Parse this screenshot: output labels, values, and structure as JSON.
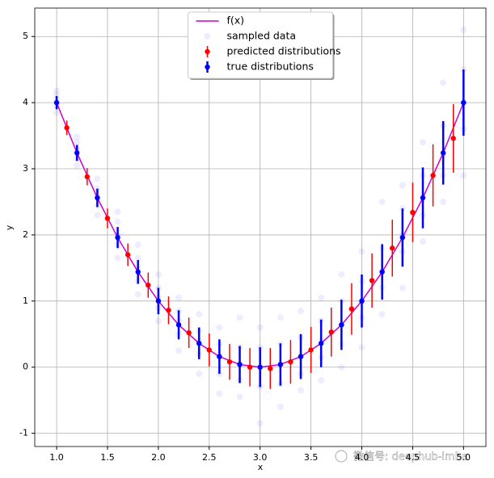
{
  "chart_data": {
    "type": "errorbar",
    "xlabel": "x",
    "ylabel": "y",
    "xlim": [
      0.785,
      5.22
    ],
    "ylim": [
      -1.2,
      5.43
    ],
    "xticks": [
      {
        "value": 1.0,
        "label": "1.0"
      },
      {
        "value": 1.5,
        "label": "1.5"
      },
      {
        "value": 2.0,
        "label": "2.0"
      },
      {
        "value": 2.5,
        "label": "2.5"
      },
      {
        "value": 3.0,
        "label": "3.0"
      },
      {
        "value": 3.5,
        "label": "3.5"
      },
      {
        "value": 4.0,
        "label": "4.0"
      },
      {
        "value": 4.5,
        "label": "4.5"
      },
      {
        "value": 5.0,
        "label": "5.0"
      }
    ],
    "yticks": [
      -1,
      0,
      1,
      2,
      3,
      4,
      5
    ],
    "grid": true,
    "legend": "upper center",
    "series": [
      {
        "name": "f(x)",
        "type": "line",
        "color": "#cc00cc",
        "x": [
          1.0,
          1.2,
          1.4,
          1.6,
          1.8,
          2.0,
          2.2,
          2.4,
          2.6,
          2.8,
          3.0,
          3.2,
          3.4,
          3.6,
          3.8,
          4.0,
          4.2,
          4.4,
          4.6,
          4.8,
          5.0
        ],
        "values": [
          4,
          3.24,
          2.56,
          1.96,
          1.44,
          1.0,
          0.64,
          0.36,
          0.16,
          0.04,
          0,
          0.04,
          0.16,
          0.36,
          0.64,
          1.0,
          1.44,
          1.96,
          2.56,
          3.24,
          4
        ]
      },
      {
        "name": "sampled data",
        "type": "scatter",
        "color": "#0000ff",
        "x": [
          1.0,
          1.0,
          1.0,
          1.0,
          1.0,
          1.2,
          1.2,
          1.2,
          1.2,
          1.2,
          1.4,
          1.4,
          1.4,
          1.4,
          1.4,
          1.6,
          1.6,
          1.6,
          1.6,
          1.6,
          1.8,
          1.8,
          1.8,
          1.8,
          1.8,
          2.0,
          2.0,
          2.0,
          2.0,
          2.0,
          2.2,
          2.2,
          2.2,
          2.2,
          2.2,
          2.4,
          2.4,
          2.4,
          2.4,
          2.4,
          2.6,
          2.6,
          2.6,
          2.6,
          2.6,
          2.8,
          2.8,
          2.8,
          2.8,
          2.8,
          3.0,
          3.0,
          3.0,
          3.0,
          3.0,
          3.2,
          3.2,
          3.2,
          3.2,
          3.2,
          3.4,
          3.4,
          3.4,
          3.4,
          3.4,
          3.6,
          3.6,
          3.6,
          3.6,
          3.6,
          3.8,
          3.8,
          3.8,
          3.8,
          3.8,
          4.0,
          4.0,
          4.0,
          4.0,
          4.0,
          4.2,
          4.2,
          4.2,
          4.2,
          4.2,
          4.4,
          4.4,
          4.4,
          4.4,
          4.4,
          4.6,
          4.6,
          4.6,
          4.6,
          4.6,
          4.8,
          4.8,
          4.8,
          4.8,
          4.8,
          5.0,
          5.0,
          5.0,
          5.0,
          5.0
        ],
        "values": [
          3.85,
          3.95,
          4.05,
          4.12,
          4.18,
          3.05,
          3.15,
          3.3,
          3.4,
          3.48,
          2.3,
          2.45,
          2.6,
          2.7,
          2.85,
          1.65,
          1.85,
          2.0,
          2.2,
          2.35,
          1.1,
          1.3,
          1.5,
          1.65,
          1.85,
          0.7,
          0.9,
          1.05,
          1.2,
          1.4,
          0.25,
          0.5,
          0.7,
          0.85,
          1.05,
          -0.1,
          0.2,
          0.4,
          0.55,
          0.8,
          -0.4,
          -0.1,
          0.15,
          0.35,
          0.6,
          -0.45,
          -0.2,
          0.05,
          0.3,
          0.75,
          -0.85,
          -0.3,
          0.0,
          0.3,
          0.6,
          -0.6,
          -0.25,
          0.05,
          0.35,
          0.75,
          -0.35,
          -0.1,
          0.15,
          0.45,
          0.85,
          -0.2,
          0.15,
          0.4,
          0.7,
          1.05,
          0.0,
          0.35,
          0.65,
          1.0,
          1.4,
          0.3,
          0.75,
          1.0,
          1.3,
          1.75,
          0.8,
          1.2,
          1.45,
          1.8,
          2.5,
          1.2,
          1.75,
          2.0,
          2.4,
          2.75,
          1.9,
          2.3,
          2.6,
          2.9,
          3.4,
          2.5,
          2.9,
          3.2,
          3.65,
          4.3,
          2.9,
          3.6,
          4.0,
          4.5,
          5.1
        ]
      },
      {
        "name": "predicted distributions",
        "type": "errorbar",
        "color": "#ff0000",
        "linewidth": 1.5,
        "x": [
          1.1,
          1.3,
          1.5,
          1.7,
          1.9,
          2.1,
          2.3,
          2.5,
          2.7,
          2.9,
          3.1,
          3.3,
          3.5,
          3.7,
          3.9,
          4.1,
          4.3,
          4.5,
          4.7,
          4.9
        ],
        "values": [
          3.62,
          2.88,
          2.25,
          1.7,
          1.24,
          0.86,
          0.52,
          0.26,
          0.08,
          0.0,
          -0.02,
          0.08,
          0.26,
          0.53,
          0.88,
          1.31,
          1.8,
          2.34,
          2.9,
          3.46
        ],
        "errors": [
          0.11,
          0.13,
          0.15,
          0.17,
          0.19,
          0.21,
          0.23,
          0.25,
          0.27,
          0.29,
          0.31,
          0.33,
          0.35,
          0.37,
          0.39,
          0.41,
          0.43,
          0.45,
          0.47,
          0.52
        ]
      },
      {
        "name": "true distributions",
        "type": "errorbar",
        "color": "#0000ff",
        "linewidth": 2.5,
        "x": [
          1.0,
          1.2,
          1.4,
          1.6,
          1.8,
          2.0,
          2.2,
          2.4,
          2.6,
          2.8,
          3.0,
          3.2,
          3.4,
          3.6,
          3.8,
          4.0,
          4.2,
          4.4,
          4.6,
          4.8,
          5.0
        ],
        "values": [
          4,
          3.24,
          2.56,
          1.96,
          1.44,
          1.0,
          0.64,
          0.36,
          0.16,
          0.04,
          0,
          0.04,
          0.16,
          0.36,
          0.64,
          1.0,
          1.44,
          1.96,
          2.56,
          3.24,
          4
        ],
        "errors": [
          0.1,
          0.12,
          0.14,
          0.16,
          0.18,
          0.2,
          0.22,
          0.24,
          0.26,
          0.28,
          0.3,
          0.32,
          0.34,
          0.36,
          0.38,
          0.4,
          0.42,
          0.44,
          0.46,
          0.48,
          0.5
        ]
      }
    ]
  },
  "watermark": "微信号: deephub-imba"
}
